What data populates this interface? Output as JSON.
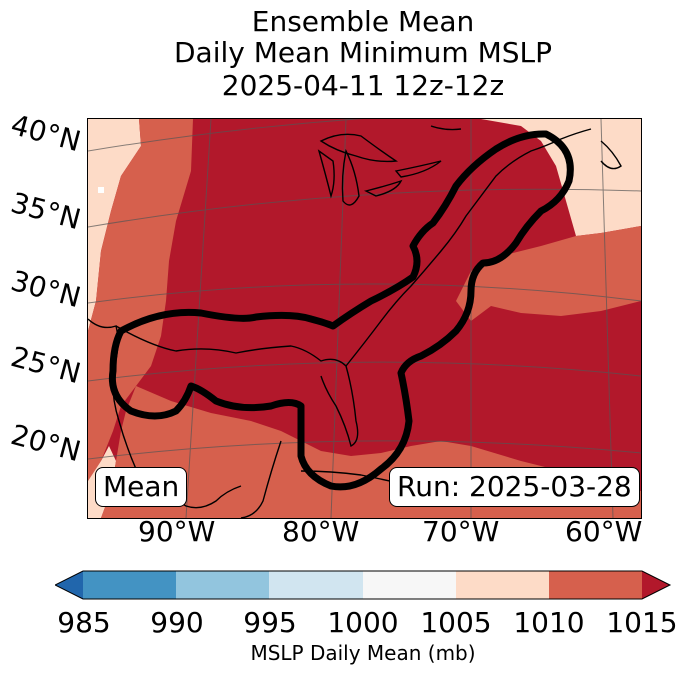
{
  "title": {
    "line1": "Ensemble Mean",
    "line2": "Daily Mean Minimum MSLP",
    "line3": "2025-04-11 12z-12z"
  },
  "latitude_labels": [
    "40°N",
    "35°N",
    "30°N",
    "25°N",
    "20°N"
  ],
  "longitude_labels": [
    "90°W",
    "80°W",
    "70°W",
    "60°W"
  ],
  "annotations": {
    "left_box": "Mean",
    "right_box": "Run: 2025-03-28"
  },
  "colorbar": {
    "label": "MSLP Daily Mean (mb)",
    "ticks": [
      "985",
      "990",
      "995",
      "1000",
      "1005",
      "1010",
      "1015"
    ],
    "colors": [
      "#2166ac",
      "#4393c3",
      "#92c5de",
      "#d1e5f0",
      "#f7f7f7",
      "#fddbc7",
      "#d6604d",
      "#b2182b"
    ]
  }
}
